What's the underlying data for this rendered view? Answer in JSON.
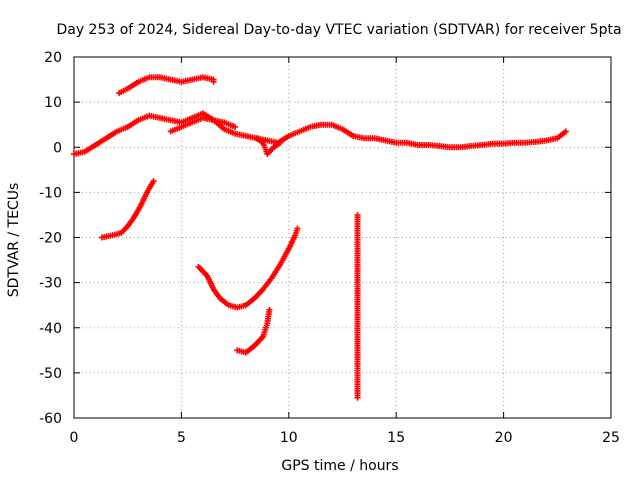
{
  "chart_data": {
    "type": "scatter",
    "title": "Day 253 of 2024, Sidereal Day-to-day VTEC variation (SDTVAR) for receiver 5pta",
    "xlabel": "GPS time / hours",
    "ylabel": "SDTVAR / TECUs",
    "xlim": [
      0,
      25
    ],
    "ylim": [
      -60,
      20
    ],
    "xticks": [
      0,
      5,
      10,
      15,
      20,
      25
    ],
    "yticks": [
      -60,
      -50,
      -40,
      -30,
      -20,
      -10,
      0,
      10,
      20
    ],
    "grid": true,
    "marker": "+",
    "color": "#ff0000",
    "series": [
      {
        "name": "arc-main",
        "points": [
          [
            0,
            -1.5
          ],
          [
            0.5,
            -1
          ],
          [
            1,
            0.5
          ],
          [
            1.5,
            2
          ],
          [
            2,
            3.5
          ],
          [
            2.5,
            4.5
          ],
          [
            3,
            6
          ],
          [
            3.5,
            7
          ],
          [
            4,
            6.5
          ],
          [
            4.5,
            6
          ],
          [
            5,
            5.5
          ],
          [
            5.5,
            6.5
          ],
          [
            6,
            7.5
          ],
          [
            6.5,
            6
          ],
          [
            7,
            4
          ],
          [
            7.5,
            3
          ],
          [
            8,
            2.5
          ],
          [
            8.5,
            2
          ],
          [
            9,
            1.5
          ],
          [
            9.5,
            1
          ],
          [
            10,
            2.5
          ],
          [
            10.5,
            3.5
          ],
          [
            11,
            4.5
          ],
          [
            11.5,
            5
          ],
          [
            12,
            5
          ],
          [
            12.5,
            4
          ],
          [
            13,
            2.5
          ],
          [
            13.5,
            2
          ],
          [
            14,
            2
          ],
          [
            14.5,
            1.5
          ],
          [
            15,
            1
          ],
          [
            15.5,
            1
          ],
          [
            16,
            0.5
          ],
          [
            16.5,
            0.5
          ],
          [
            17,
            0.3
          ],
          [
            17.5,
            0
          ],
          [
            18,
            0
          ],
          [
            18.5,
            0.3
          ],
          [
            19,
            0.5
          ],
          [
            19.5,
            0.8
          ],
          [
            20,
            0.8
          ],
          [
            20.5,
            1
          ],
          [
            21,
            1
          ],
          [
            21.5,
            1.2
          ],
          [
            22,
            1.5
          ],
          [
            22.5,
            2
          ],
          [
            22.9,
            3.5
          ]
        ]
      },
      {
        "name": "arc-upper-dip",
        "points": [
          [
            4.5,
            3.5
          ],
          [
            5,
            4.5
          ],
          [
            5.5,
            5.5
          ],
          [
            6,
            6.5
          ],
          [
            6.5,
            6
          ],
          [
            7,
            5.5
          ],
          [
            7.5,
            4.5
          ]
        ]
      },
      {
        "name": "arc-upper",
        "points": [
          [
            2.1,
            12
          ],
          [
            2.5,
            13
          ],
          [
            3,
            14.5
          ],
          [
            3.5,
            15.5
          ],
          [
            4,
            15.5
          ],
          [
            4.5,
            15
          ],
          [
            5,
            14.5
          ],
          [
            5.5,
            15
          ],
          [
            6,
            15.5
          ],
          [
            6.5,
            15
          ],
          [
            6.5,
            14.5
          ]
        ]
      },
      {
        "name": "arc-dip",
        "points": [
          [
            8.5,
            2
          ],
          [
            8.8,
            1
          ],
          [
            9,
            -1.5
          ],
          [
            9.3,
            0
          ],
          [
            9.6,
            1
          ]
        ]
      },
      {
        "name": "arc-left-low",
        "points": [
          [
            1.3,
            -20
          ],
          [
            1.8,
            -19.5
          ],
          [
            2.2,
            -19
          ],
          [
            2.5,
            -17.5
          ],
          [
            2.8,
            -15.5
          ],
          [
            3.1,
            -13
          ],
          [
            3.4,
            -10
          ],
          [
            3.7,
            -7.5
          ]
        ]
      },
      {
        "name": "arc-u-curve",
        "points": [
          [
            5.8,
            -26.5
          ],
          [
            6.2,
            -28.5
          ],
          [
            6.5,
            -31.5
          ],
          [
            6.8,
            -33.5
          ],
          [
            7.2,
            -35
          ],
          [
            7.6,
            -35.5
          ],
          [
            8,
            -35
          ],
          [
            8.4,
            -33.5
          ],
          [
            8.8,
            -31.5
          ],
          [
            9.2,
            -29
          ],
          [
            9.6,
            -26
          ],
          [
            10,
            -22.5
          ],
          [
            10.3,
            -19.5
          ],
          [
            10.4,
            -18
          ]
        ]
      },
      {
        "name": "arc-lower",
        "points": [
          [
            7.6,
            -45
          ],
          [
            8,
            -45.5
          ],
          [
            8.4,
            -44
          ],
          [
            8.8,
            -42
          ],
          [
            9,
            -39
          ],
          [
            9.1,
            -36
          ]
        ]
      },
      {
        "name": "isolated-points",
        "points": [
          [
            13.2,
            -15
          ],
          [
            13.2,
            -16.5
          ],
          [
            13.2,
            -25.5
          ],
          [
            13.2,
            -44.5
          ],
          [
            13.2,
            -47.5
          ],
          [
            13.2,
            -54.5
          ],
          [
            13.2,
            -55.5
          ]
        ]
      }
    ]
  }
}
